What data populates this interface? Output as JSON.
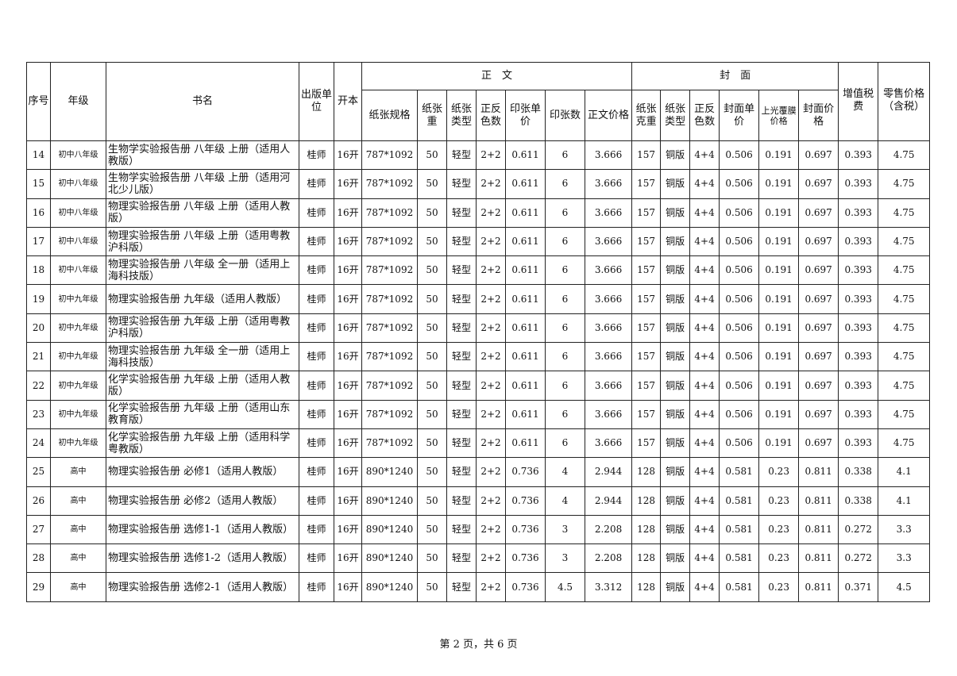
{
  "header": {
    "seq": "序号",
    "grade": "年级",
    "book": "书名",
    "publisher": "出版单位",
    "format": "开本",
    "body_group": "正　文",
    "cover_group": "封　面",
    "vat": "增值税费",
    "retail": "零售价格（含税）",
    "body_cols": [
      "纸张规格",
      "纸张重",
      "纸张类型",
      "正反色数",
      "印张单价",
      "印张数",
      "正文价格"
    ],
    "cover_cols": [
      "纸张克重",
      "纸张类型",
      "正反色数",
      "封面单价",
      "上光覆膜价格",
      "封面价格"
    ]
  },
  "rows": [
    [
      "14",
      "初中八年级",
      "生物学实验报告册 八年级 上册（适用人教版）",
      "桂师",
      "16开",
      "787*1092",
      "50",
      "轻型",
      "2+2",
      "0.611",
      "6",
      "3.666",
      "157",
      "铜版",
      "4+4",
      "0.506",
      "0.191",
      "0.697",
      "0.393",
      "4.75"
    ],
    [
      "15",
      "初中八年级",
      "生物学实验报告册 八年级 上册（适用河北少儿版）",
      "桂师",
      "16开",
      "787*1092",
      "50",
      "轻型",
      "2+2",
      "0.611",
      "6",
      "3.666",
      "157",
      "铜版",
      "4+4",
      "0.506",
      "0.191",
      "0.697",
      "0.393",
      "4.75"
    ],
    [
      "16",
      "初中八年级",
      "物理实验报告册 八年级 上册（适用人教版）",
      "桂师",
      "16开",
      "787*1092",
      "50",
      "轻型",
      "2+2",
      "0.611",
      "6",
      "3.666",
      "157",
      "铜版",
      "4+4",
      "0.506",
      "0.191",
      "0.697",
      "0.393",
      "4.75"
    ],
    [
      "17",
      "初中八年级",
      "物理实验报告册 八年级 上册（适用粤教沪科版）",
      "桂师",
      "16开",
      "787*1092",
      "50",
      "轻型",
      "2+2",
      "0.611",
      "6",
      "3.666",
      "157",
      "铜版",
      "4+4",
      "0.506",
      "0.191",
      "0.697",
      "0.393",
      "4.75"
    ],
    [
      "18",
      "初中八年级",
      "物理实验报告册 八年级 全一册（适用上海科技版）",
      "桂师",
      "16开",
      "787*1092",
      "50",
      "轻型",
      "2+2",
      "0.611",
      "6",
      "3.666",
      "157",
      "铜版",
      "4+4",
      "0.506",
      "0.191",
      "0.697",
      "0.393",
      "4.75"
    ],
    [
      "19",
      "初中九年级",
      "物理实验报告册 九年级（适用人教版）",
      "桂师",
      "16开",
      "787*1092",
      "50",
      "轻型",
      "2+2",
      "0.611",
      "6",
      "3.666",
      "157",
      "铜版",
      "4+4",
      "0.506",
      "0.191",
      "0.697",
      "0.393",
      "4.75"
    ],
    [
      "20",
      "初中九年级",
      "物理实验报告册 九年级 上册（适用粤教沪科版）",
      "桂师",
      "16开",
      "787*1092",
      "50",
      "轻型",
      "2+2",
      "0.611",
      "6",
      "3.666",
      "157",
      "铜版",
      "4+4",
      "0.506",
      "0.191",
      "0.697",
      "0.393",
      "4.75"
    ],
    [
      "21",
      "初中九年级",
      "物理实验报告册 九年级 全一册（适用上海科技版）",
      "桂师",
      "16开",
      "787*1092",
      "50",
      "轻型",
      "2+2",
      "0.611",
      "6",
      "3.666",
      "157",
      "铜版",
      "4+4",
      "0.506",
      "0.191",
      "0.697",
      "0.393",
      "4.75"
    ],
    [
      "22",
      "初中九年级",
      "化学实验报告册 九年级 上册（适用人教版）",
      "桂师",
      "16开",
      "787*1092",
      "50",
      "轻型",
      "2+2",
      "0.611",
      "6",
      "3.666",
      "157",
      "铜版",
      "4+4",
      "0.506",
      "0.191",
      "0.697",
      "0.393",
      "4.75"
    ],
    [
      "23",
      "初中九年级",
      "化学实验报告册 九年级 上册（适用山东教育版）",
      "桂师",
      "16开",
      "787*1092",
      "50",
      "轻型",
      "2+2",
      "0.611",
      "6",
      "3.666",
      "157",
      "铜版",
      "4+4",
      "0.506",
      "0.191",
      "0.697",
      "0.393",
      "4.75"
    ],
    [
      "24",
      "初中九年级",
      "化学实验报告册 九年级 上册（适用科学粤教版）",
      "桂师",
      "16开",
      "787*1092",
      "50",
      "轻型",
      "2+2",
      "0.611",
      "6",
      "3.666",
      "157",
      "铜版",
      "4+4",
      "0.506",
      "0.191",
      "0.697",
      "0.393",
      "4.75"
    ],
    [
      "25",
      "高中",
      "物理实验报告册 必修1（适用人教版）",
      "桂师",
      "16开",
      "890*1240",
      "50",
      "轻型",
      "2+2",
      "0.736",
      "4",
      "2.944",
      "128",
      "铜版",
      "4+4",
      "0.581",
      "0.23",
      "0.811",
      "0.338",
      "4.1"
    ],
    [
      "26",
      "高中",
      "物理实验报告册 必修2（适用人教版）",
      "桂师",
      "16开",
      "890*1240",
      "50",
      "轻型",
      "2+2",
      "0.736",
      "4",
      "2.944",
      "128",
      "铜版",
      "4+4",
      "0.581",
      "0.23",
      "0.811",
      "0.338",
      "4.1"
    ],
    [
      "27",
      "高中",
      "物理实验报告册 选修1-1（适用人教版）",
      "桂师",
      "16开",
      "890*1240",
      "50",
      "轻型",
      "2+2",
      "0.736",
      "3",
      "2.208",
      "128",
      "铜版",
      "4+4",
      "0.581",
      "0.23",
      "0.811",
      "0.272",
      "3.3"
    ],
    [
      "28",
      "高中",
      "物理实验报告册 选修1-2（适用人教版）",
      "桂师",
      "16开",
      "890*1240",
      "50",
      "轻型",
      "2+2",
      "0.736",
      "3",
      "2.208",
      "128",
      "铜版",
      "4+4",
      "0.581",
      "0.23",
      "0.811",
      "0.272",
      "3.3"
    ],
    [
      "29",
      "高中",
      "物理实验报告册 选修2-1（适用人教版）",
      "桂师",
      "16开",
      "890*1240",
      "50",
      "轻型",
      "2+2",
      "0.736",
      "4.5",
      "3.312",
      "128",
      "铜版",
      "4+4",
      "0.581",
      "0.23",
      "0.811",
      "0.371",
      "4.5"
    ]
  ],
  "footer": "第 2 页，共 6 页"
}
